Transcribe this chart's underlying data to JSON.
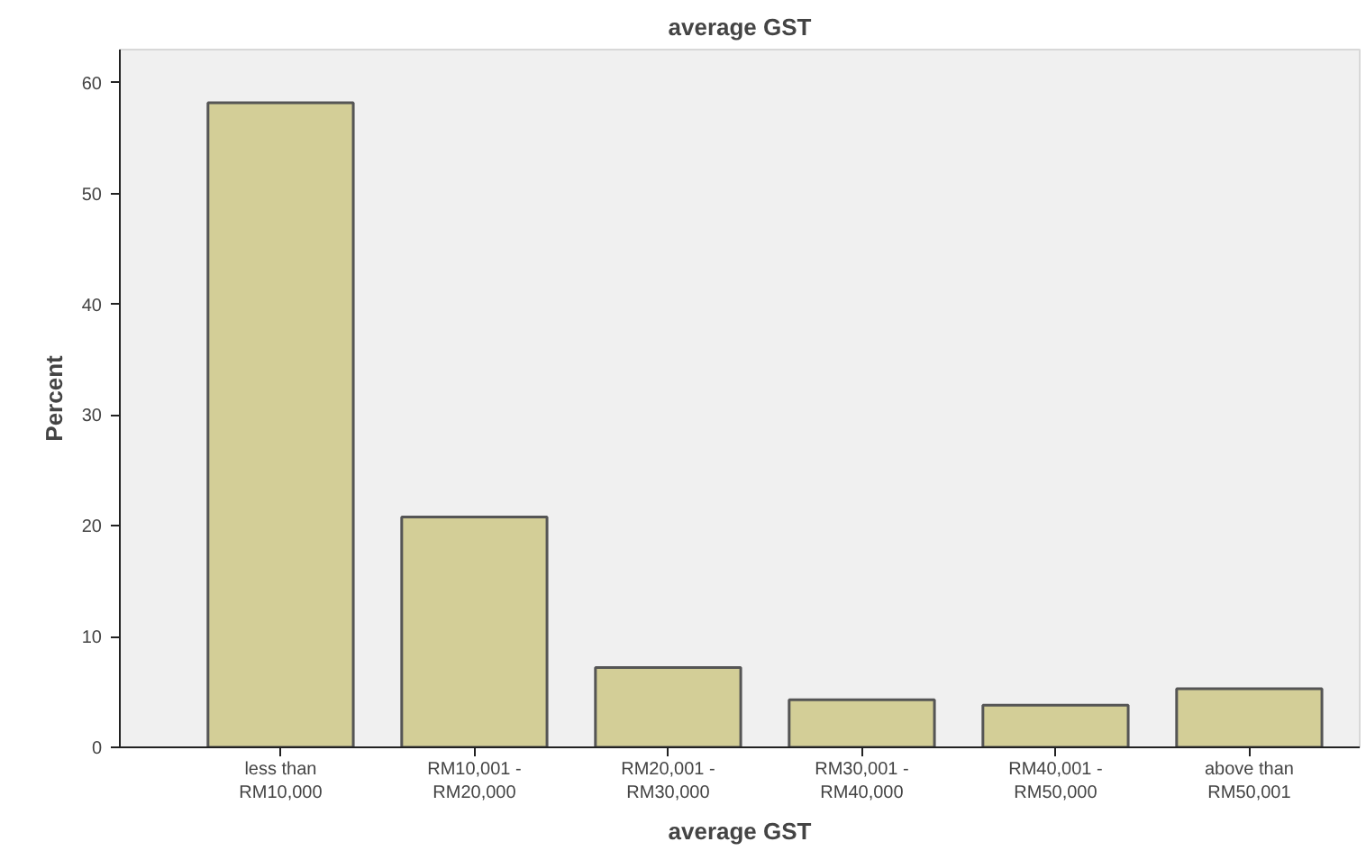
{
  "chart_data": {
    "type": "bar",
    "title": "average GST",
    "xlabel": "average GST",
    "ylabel": "Percent",
    "categories": [
      "less than RM10,000",
      "RM10,001 - RM20,000",
      "RM20,001 - RM30,000",
      "RM30,001 - RM40,000",
      "RM40,001 - RM50,000",
      "above than RM50,001"
    ],
    "values": [
      58.2,
      20.8,
      7.2,
      4.3,
      3.8,
      5.3
    ],
    "color": "#d3ce97",
    "ylim": [
      0,
      63
    ],
    "yticks": [
      0,
      10,
      20,
      30,
      40,
      50,
      60
    ],
    "grid": false
  }
}
